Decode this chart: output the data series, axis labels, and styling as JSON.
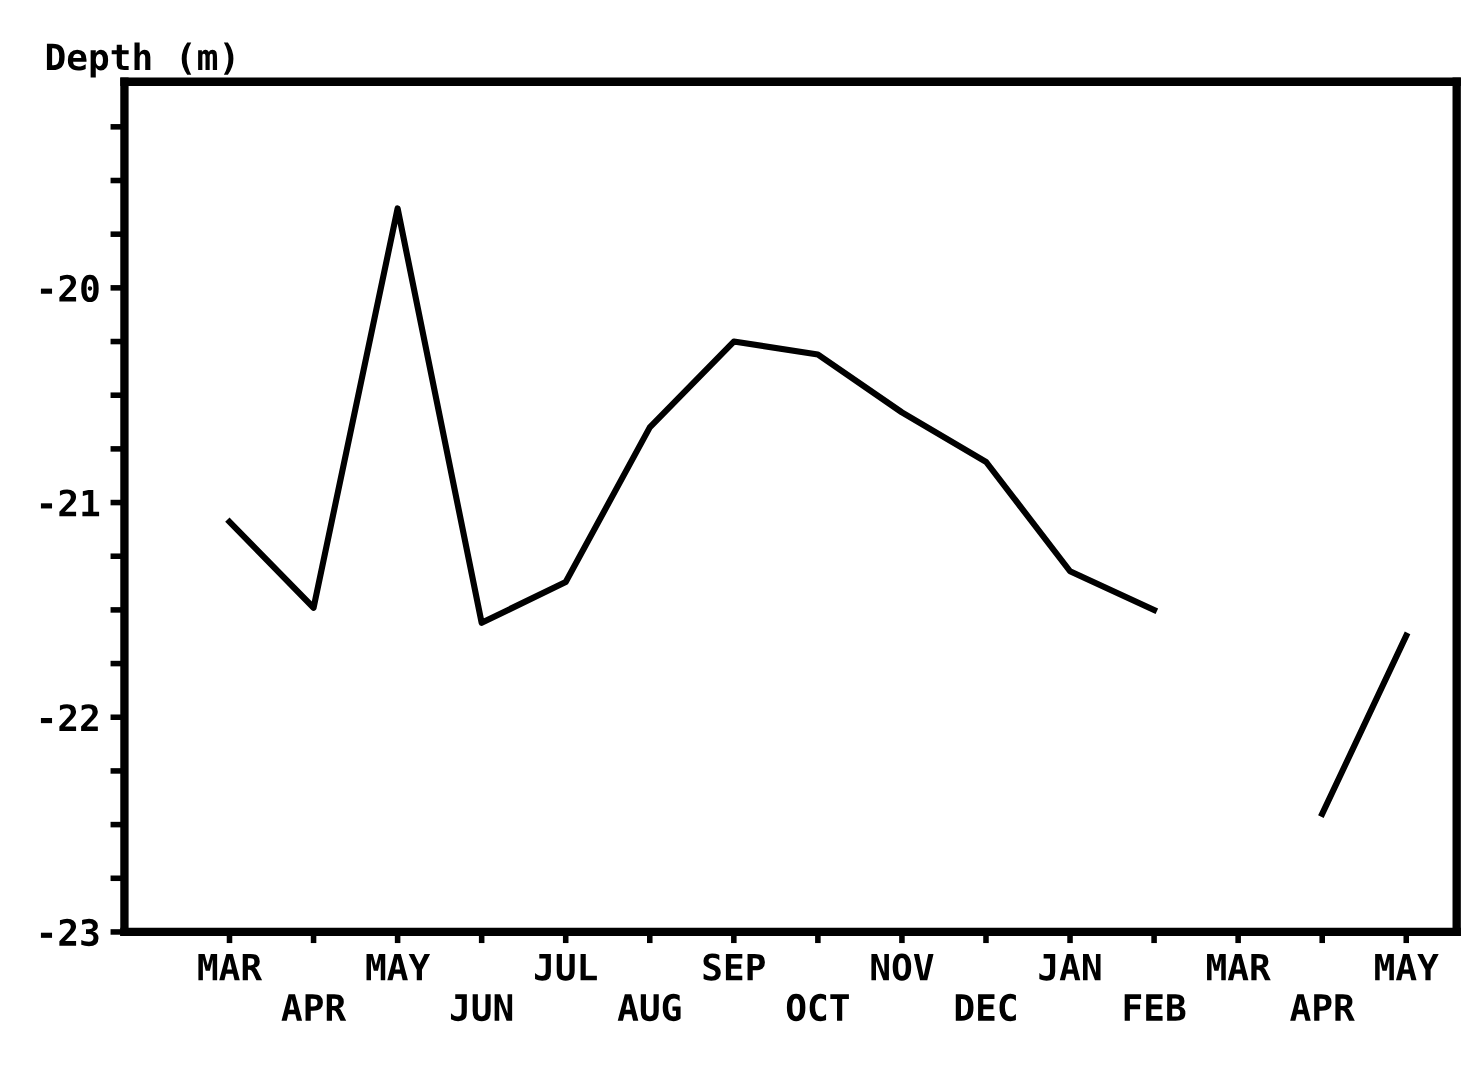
{
  "chart_data": {
    "type": "line",
    "ylabel": "Depth (m)",
    "categories": [
      "MAR",
      "APR",
      "MAY",
      "JUN",
      "JUL",
      "AUG",
      "SEP",
      "OCT",
      "NOV",
      "DEC",
      "JAN",
      "FEB",
      "MAR",
      "APR",
      "MAY"
    ],
    "series": [
      {
        "color": "#000000",
        "values": [
          -21.09,
          -21.49,
          -19.63,
          -21.56,
          -21.37,
          -20.65,
          -20.25,
          -20.31,
          -20.58,
          -20.81,
          -21.32,
          -21.5,
          null,
          -22.45,
          -21.62
        ]
      }
    ],
    "ylim": [
      -23,
      -19.04
    ],
    "yticks": [
      -23,
      {
        "value": -22.75,
        "label": null
      },
      {
        "value": -22.5,
        "label": null
      },
      {
        "value": -22.25,
        "label": null
      },
      -22,
      {
        "value": -21.75,
        "label": null
      },
      {
        "value": -21.5,
        "label": null
      },
      {
        "value": -21.25,
        "label": null
      },
      -21,
      {
        "value": -20.75,
        "label": null
      },
      {
        "value": -20.5,
        "label": null
      },
      {
        "value": -20.25,
        "label": null
      },
      -20,
      {
        "value": -19.75,
        "label": null
      },
      {
        "value": -19.5,
        "label": null
      },
      {
        "value": -19.25,
        "label": null
      }
    ],
    "marker": "none",
    "line_style": "solid"
  }
}
